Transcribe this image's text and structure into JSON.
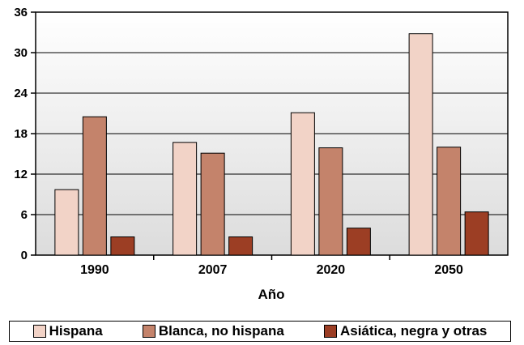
{
  "chart_data": {
    "type": "bar",
    "categories": [
      "1990",
      "2007",
      "2020",
      "2050"
    ],
    "series": [
      {
        "name": "Hispana",
        "values": [
          9.7,
          16.7,
          21.1,
          32.8
        ],
        "color": "#f2d3c7"
      },
      {
        "name": "Blanca, no hispana",
        "values": [
          20.5,
          15.1,
          15.9,
          16.0
        ],
        "color": "#c4836b"
      },
      {
        "name": "Asiática, negra y otras",
        "values": [
          2.7,
          2.7,
          4.0,
          6.4
        ],
        "color": "#9c3e24"
      }
    ],
    "xlabel": "Año",
    "ylabel": "",
    "ylim": [
      0,
      36
    ],
    "yticks": [
      0,
      6,
      12,
      18,
      24,
      30,
      36
    ],
    "grid": true,
    "legend_position": "bottom"
  }
}
